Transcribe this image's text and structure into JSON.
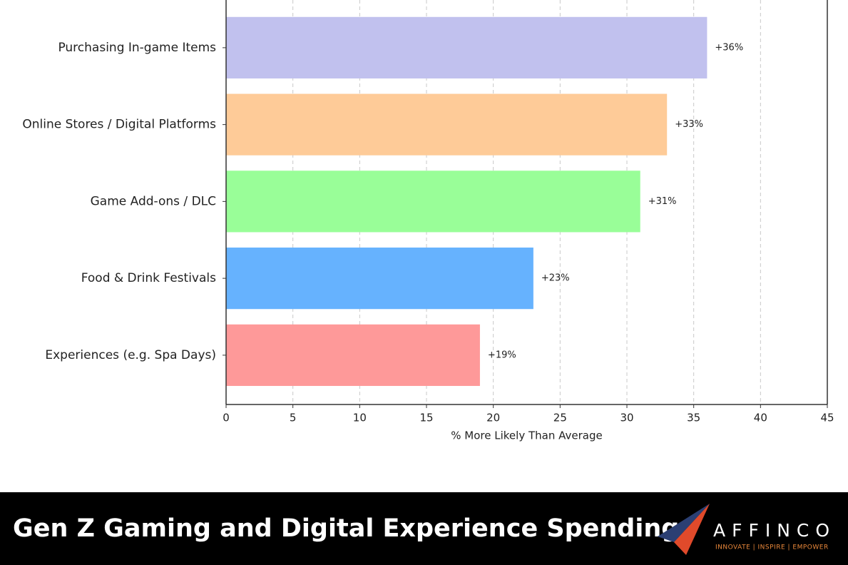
{
  "chart_data": {
    "type": "bar",
    "orientation": "horizontal",
    "categories": [
      "Purchasing In-game Items",
      "Online Stores / Digital Platforms",
      "Game Add-ons / DLC",
      "Food & Drink Festivals",
      "Experiences (e.g. Spa Days)"
    ],
    "values": [
      36,
      33,
      31,
      23,
      19
    ],
    "value_labels": [
      "+36%",
      "+33%",
      "+31%",
      "+23%",
      "+19%"
    ],
    "colors": [
      "#c1c1ee",
      "#fecb98",
      "#99fe98",
      "#66b2fe",
      "#fe9999"
    ],
    "xlabel": "% More Likely Than Average",
    "xlim": [
      0,
      45
    ],
    "xticks": [
      0,
      5,
      10,
      15,
      20,
      25,
      30,
      35,
      40,
      45
    ],
    "grid": true
  },
  "banner": {
    "title": "Gen Z Gaming and Digital Experience Spending",
    "logo_name": "AFFINCO",
    "logo_tagline": "INNOVATE | INSPIRE | EMPOWER"
  }
}
